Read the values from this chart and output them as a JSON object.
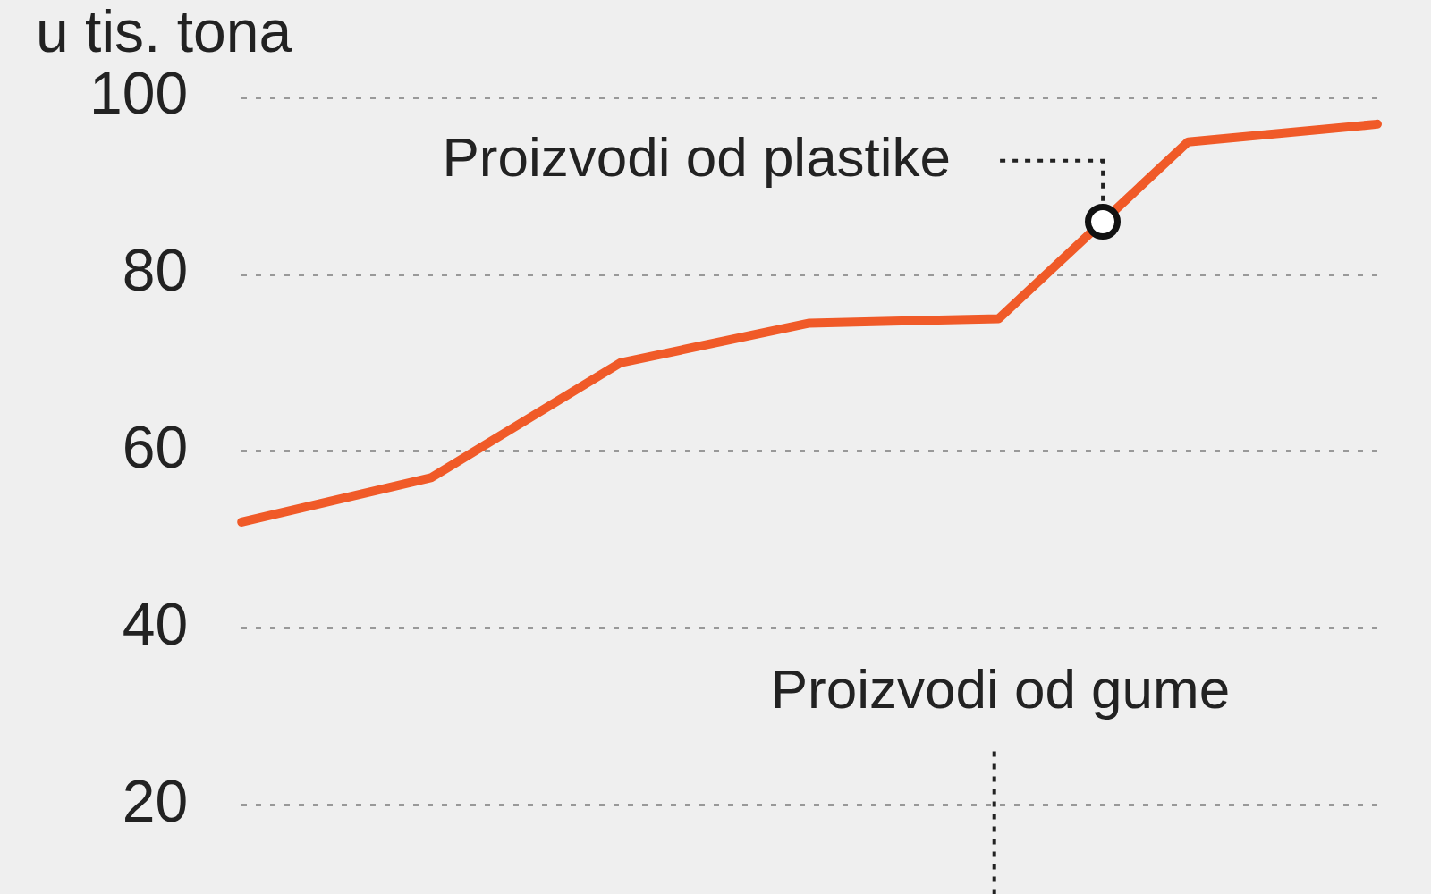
{
  "chart_data": {
    "type": "line",
    "title": "u tis. tona",
    "categories": [
      null,
      null,
      null,
      null,
      null,
      null,
      null
    ],
    "series": [
      {
        "name": "Proizvodi od plastike",
        "color": "#f05a28",
        "values": [
          52,
          57,
          70,
          74.5,
          75,
          95,
          97
        ]
      }
    ],
    "ylim": [
      20,
      100
    ],
    "yticks": [
      20,
      40,
      60,
      80,
      100
    ],
    "grid": "y",
    "legend": false,
    "marker": "none",
    "line_style": "solid",
    "annotations": [
      "Proizvodi od gume"
    ]
  }
}
